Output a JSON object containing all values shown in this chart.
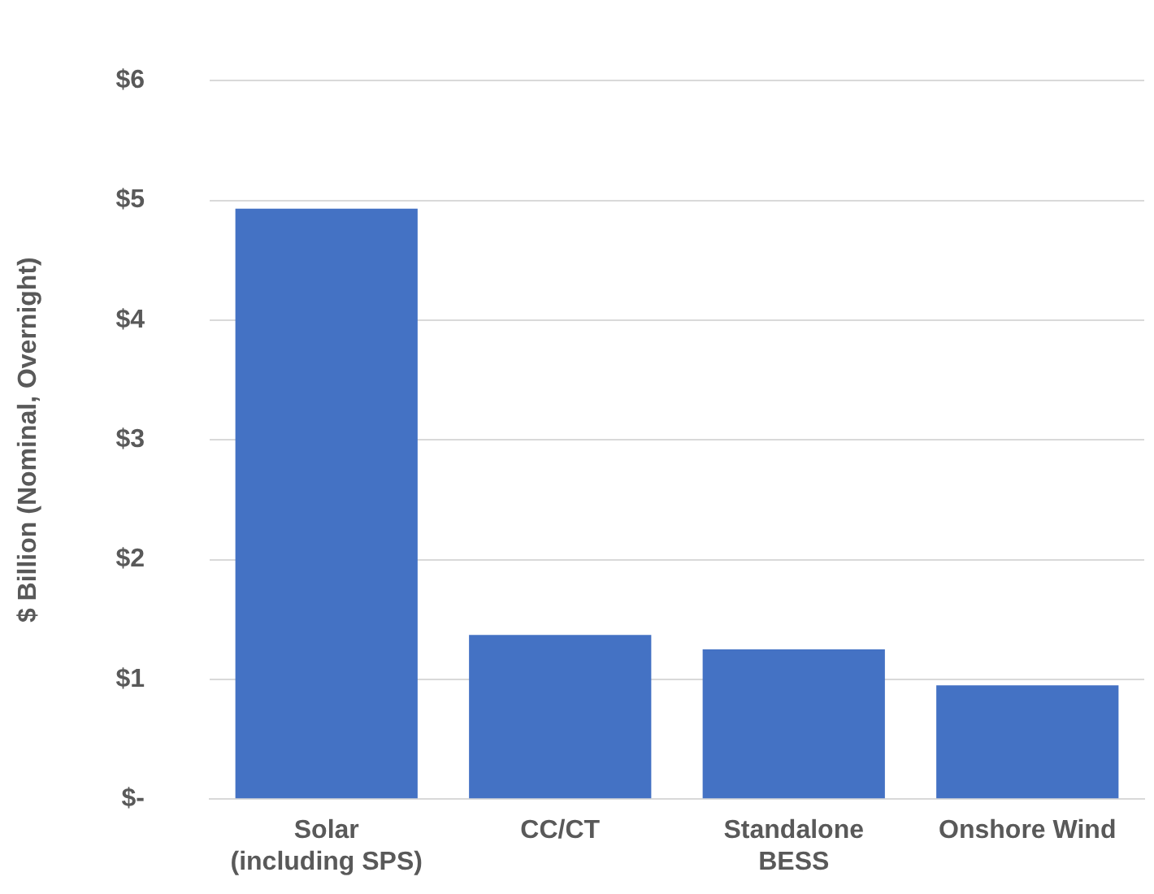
{
  "chart_data": {
    "type": "bar",
    "ylabel": "$ Billion (Nominal, Overnight)",
    "categories": [
      "Solar\n(including SPS)",
      "CC/CT",
      "Standalone\nBESS",
      "Onshore Wind"
    ],
    "values": [
      4.93,
      1.37,
      1.25,
      0.95
    ],
    "color": "#4472c4",
    "ylim": [
      0,
      6
    ],
    "yticks": [
      {
        "value": 0,
        "label": "$-"
      },
      {
        "value": 1,
        "label": "$1"
      },
      {
        "value": 2,
        "label": "$2"
      },
      {
        "value": 3,
        "label": "$3"
      },
      {
        "value": 4,
        "label": "$4"
      },
      {
        "value": 5,
        "label": "$5"
      },
      {
        "value": 6,
        "label": "$6"
      }
    ],
    "grid": "y"
  }
}
